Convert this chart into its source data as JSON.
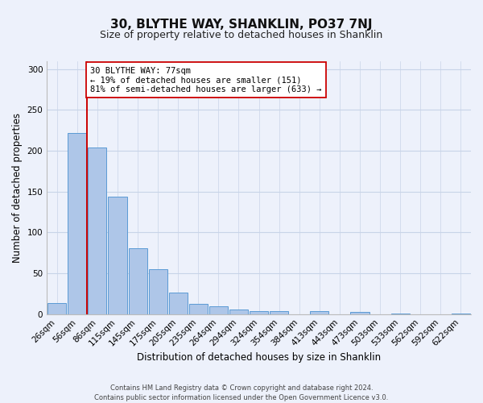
{
  "title": "30, BLYTHE WAY, SHANKLIN, PO37 7NJ",
  "subtitle": "Size of property relative to detached houses in Shanklin",
  "xlabel": "Distribution of detached houses by size in Shanklin",
  "ylabel": "Number of detached properties",
  "bar_labels": [
    "26sqm",
    "56sqm",
    "86sqm",
    "115sqm",
    "145sqm",
    "175sqm",
    "205sqm",
    "235sqm",
    "264sqm",
    "294sqm",
    "324sqm",
    "354sqm",
    "384sqm",
    "413sqm",
    "443sqm",
    "473sqm",
    "503sqm",
    "533sqm",
    "562sqm",
    "592sqm",
    "622sqm"
  ],
  "bar_heights": [
    14,
    222,
    204,
    144,
    81,
    55,
    26,
    13,
    10,
    6,
    4,
    4,
    0,
    4,
    0,
    3,
    0,
    1,
    0,
    0,
    1
  ],
  "bar_color": "#aec6e8",
  "bar_edge_color": "#5b9bd5",
  "vline_x_idx": 1,
  "vline_color": "#cc0000",
  "ylim": [
    0,
    310
  ],
  "yticks": [
    0,
    50,
    100,
    150,
    200,
    250,
    300
  ],
  "annotation_line1": "30 BLYTHE WAY: 77sqm",
  "annotation_line2": "← 19% of detached houses are smaller (151)",
  "annotation_line3": "81% of semi-detached houses are larger (633) →",
  "annotation_box_color": "#ffffff",
  "annotation_box_edge": "#cc0000",
  "footer_line1": "Contains HM Land Registry data © Crown copyright and database right 2024.",
  "footer_line2": "Contains public sector information licensed under the Open Government Licence v3.0.",
  "bg_color": "#edf1fb",
  "grid_color": "#c8d4e8",
  "title_fontsize": 11,
  "subtitle_fontsize": 9,
  "xlabel_fontsize": 8.5,
  "ylabel_fontsize": 8.5,
  "tick_fontsize": 7.5,
  "annotation_fontsize": 7.5,
  "footer_fontsize": 6
}
